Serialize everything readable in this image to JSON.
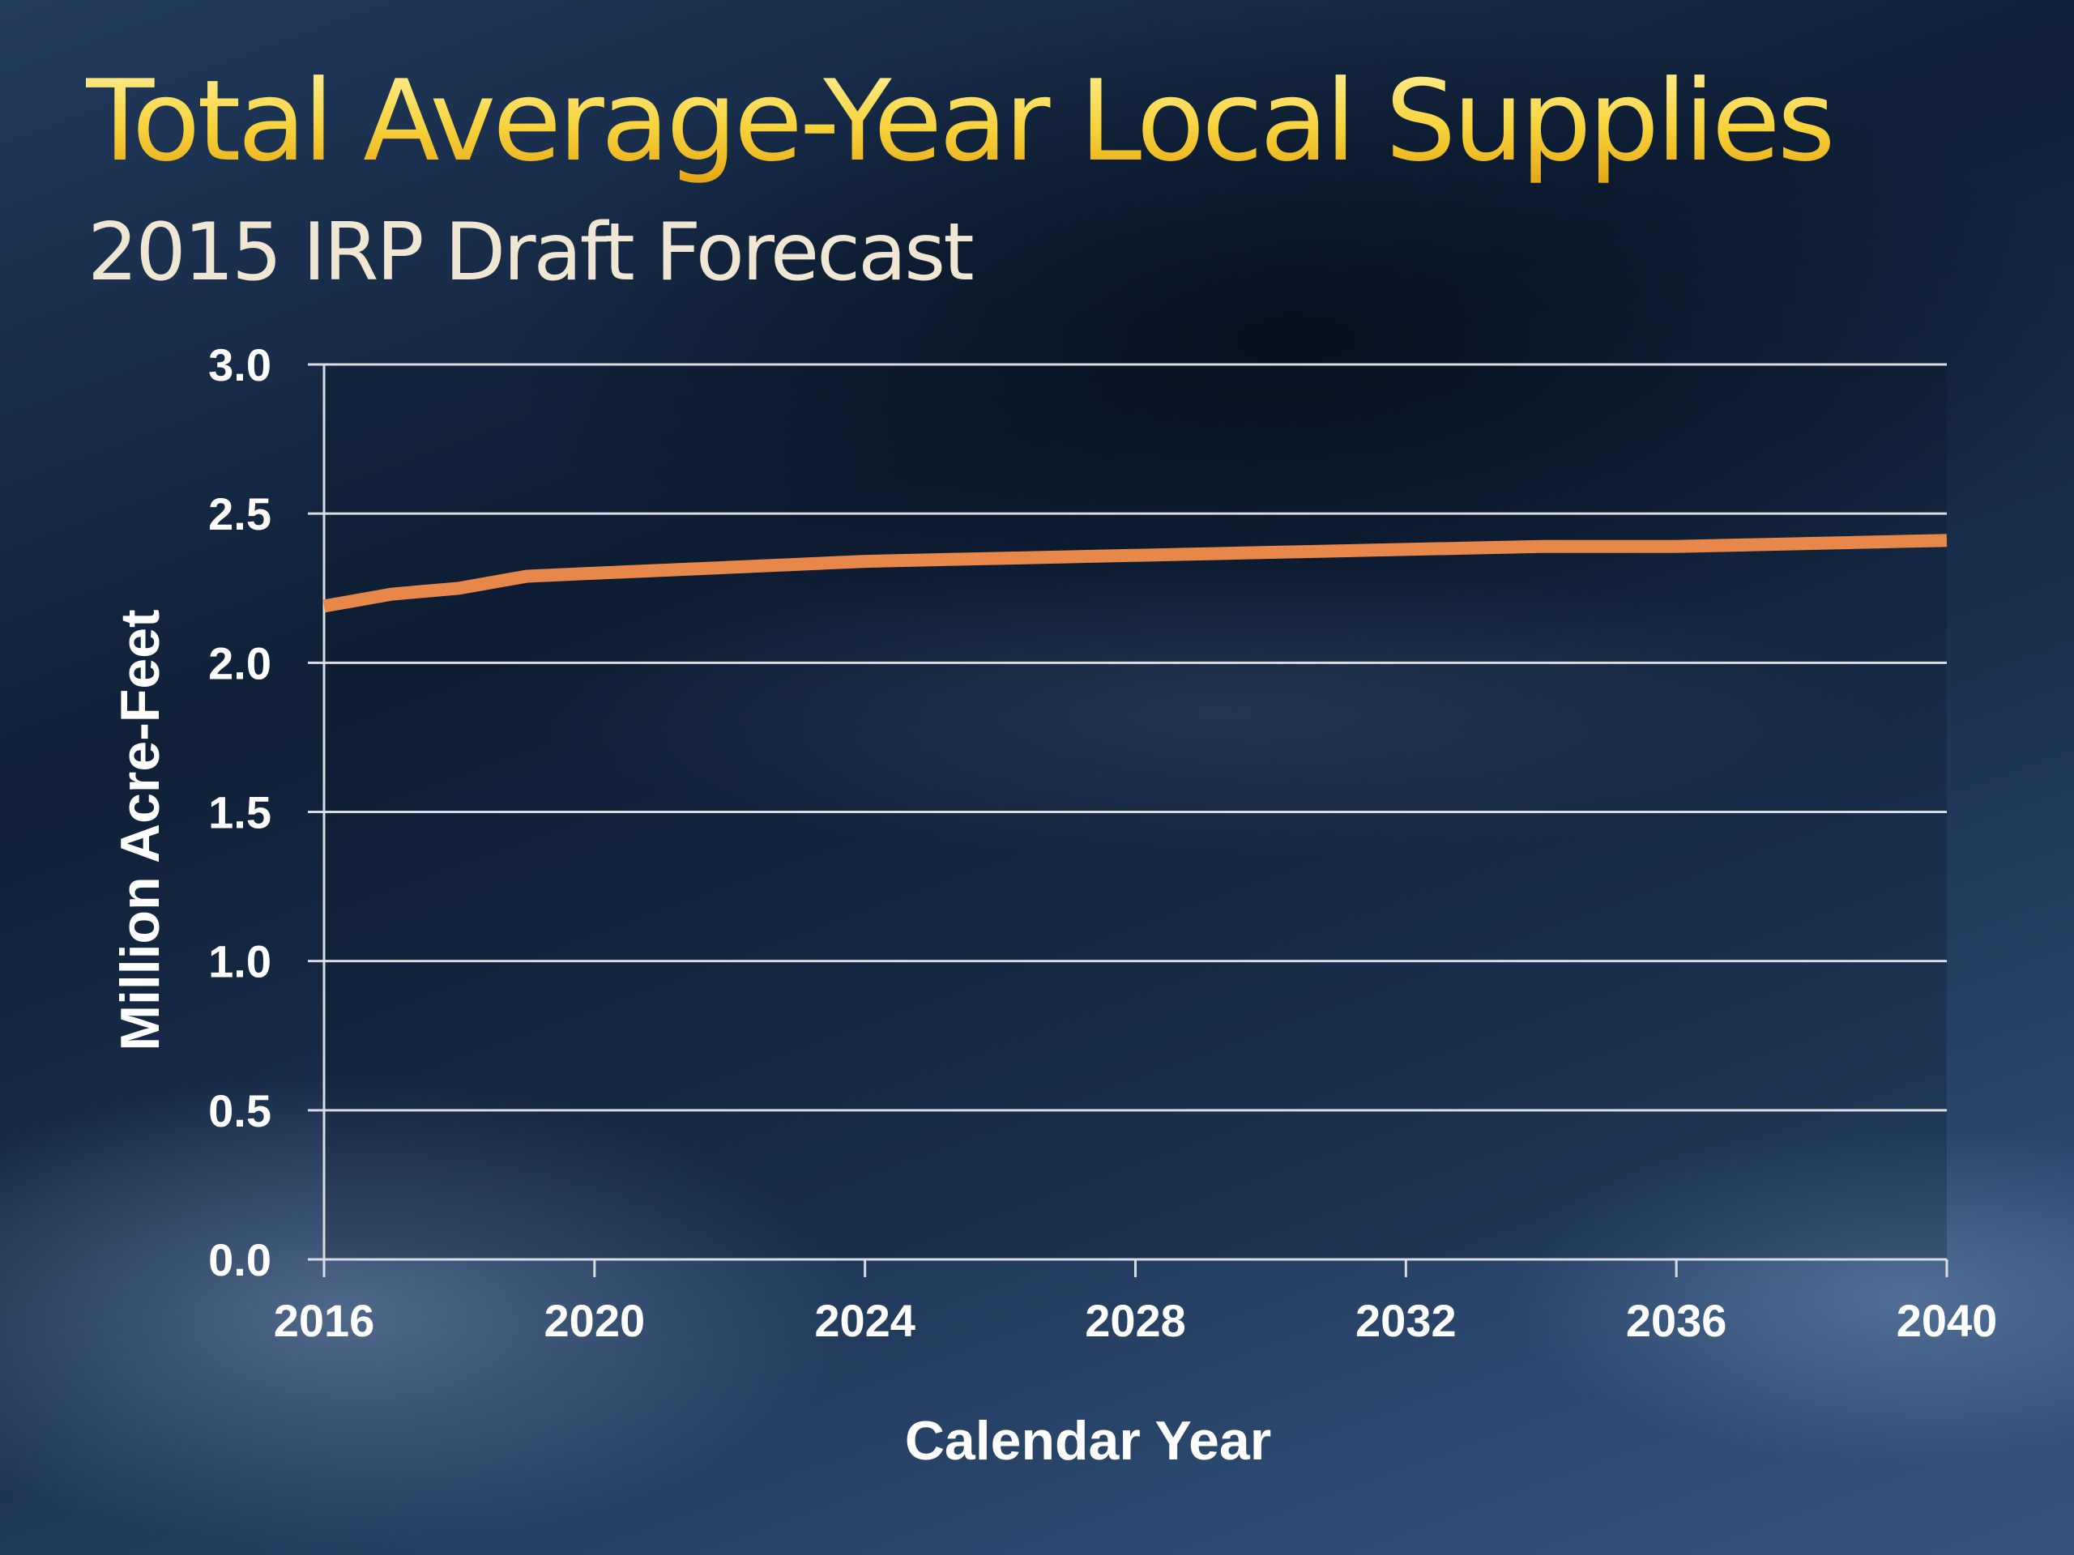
{
  "colors": {
    "title": "#f5c430",
    "subtitle": "#efe6d4",
    "line": "#e8874a",
    "grid": "#d9dde3",
    "text": "#ffffff"
  },
  "chart_data": {
    "type": "line",
    "title": "Total Average-Year Local Supplies",
    "subtitle": "2015 IRP Draft Forecast",
    "xlabel": "Calendar Year",
    "ylabel": "Million Acre-Feet",
    "xlim": [
      2016,
      2040
    ],
    "ylim": [
      0,
      3.0
    ],
    "xticks": [
      "2016",
      "2020",
      "2024",
      "2028",
      "2032",
      "2036",
      "2040"
    ],
    "yticks": [
      "0.0",
      "0.5",
      "1.0",
      "1.5",
      "2.0",
      "2.5",
      "3.0"
    ],
    "grid": true,
    "legend": "none",
    "series": [
      {
        "x": [
          2016,
          2017,
          2018,
          2019,
          2020,
          2022,
          2024,
          2026,
          2028,
          2030,
          2032,
          2034,
          2036,
          2038,
          2040
        ],
        "values": [
          2.19,
          2.23,
          2.25,
          2.29,
          2.3,
          2.32,
          2.34,
          2.35,
          2.36,
          2.37,
          2.38,
          2.39,
          2.39,
          2.4,
          2.41
        ]
      }
    ]
  }
}
